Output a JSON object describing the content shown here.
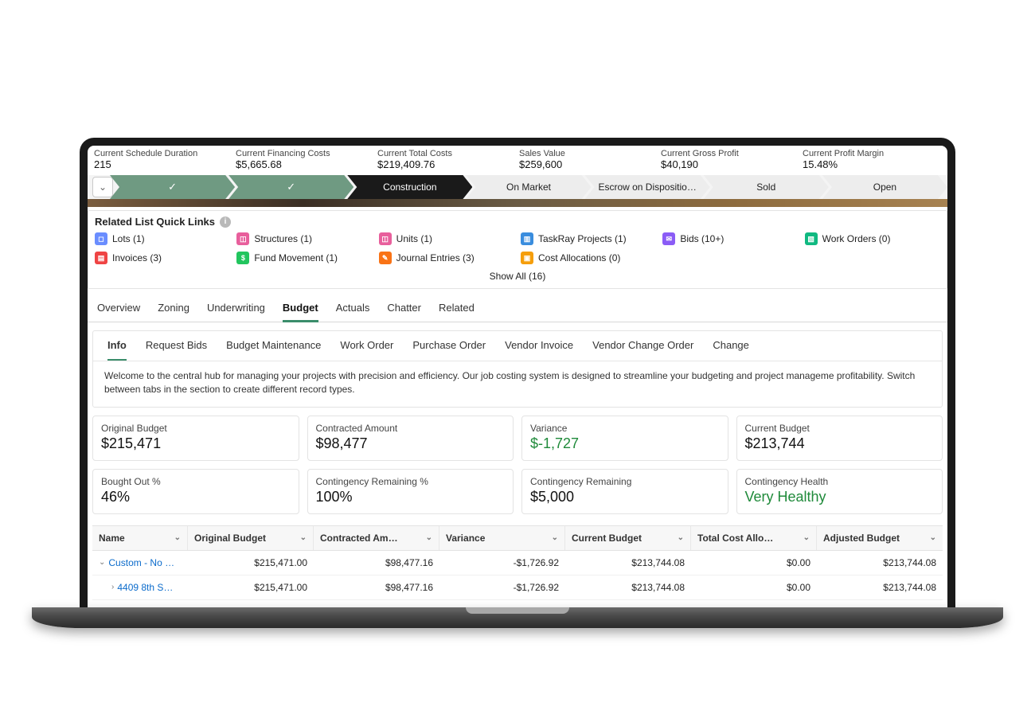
{
  "colors": {
    "stageDone": "#6f9a82",
    "stageActive": "#1a1a1a",
    "accentGreen": "#1f8a3a",
    "tabActiveUnderline": "#3b8d6b",
    "link": "#0b6bcb"
  },
  "metrics": [
    {
      "label": "Current Schedule Duration",
      "value": "215"
    },
    {
      "label": "Current Financing Costs",
      "value": "$5,665.68"
    },
    {
      "label": "Current Total Costs",
      "value": "$219,409.76"
    },
    {
      "label": "Sales Value",
      "value": "$259,600"
    },
    {
      "label": "Current Gross Profit",
      "value": "$40,190"
    },
    {
      "label": "Current Profit Margin",
      "value": "15.48%"
    }
  ],
  "stages": [
    {
      "label": "",
      "state": "done"
    },
    {
      "label": "",
      "state": "done"
    },
    {
      "label": "Construction",
      "state": "active"
    },
    {
      "label": "On Market",
      "state": "future"
    },
    {
      "label": "Escrow on Dispositio…",
      "state": "future"
    },
    {
      "label": "Sold",
      "state": "future"
    },
    {
      "label": "Open",
      "state": "future"
    }
  ],
  "related": {
    "title": "Related List Quick Links",
    "showAll": "Show All (16)",
    "items": [
      {
        "label": "Lots (1)",
        "iconColor": "#6a8dff",
        "iconGlyph": "◻"
      },
      {
        "label": "Structures (1)",
        "iconColor": "#e85f9c",
        "iconGlyph": "◫"
      },
      {
        "label": "Units (1)",
        "iconColor": "#e85f9c",
        "iconGlyph": "◫"
      },
      {
        "label": "TaskRay Projects (1)",
        "iconColor": "#3a8dde",
        "iconGlyph": "▥"
      },
      {
        "label": "Bids (10+)",
        "iconColor": "#8b5cf6",
        "iconGlyph": "✉"
      },
      {
        "label": "Work Orders (0)",
        "iconColor": "#10b981",
        "iconGlyph": "▧"
      },
      {
        "label": "Invoices (3)",
        "iconColor": "#ef4444",
        "iconGlyph": "▤"
      },
      {
        "label": "Fund Movement (1)",
        "iconColor": "#22c55e",
        "iconGlyph": "$"
      },
      {
        "label": "Journal Entries (3)",
        "iconColor": "#f97316",
        "iconGlyph": "✎"
      },
      {
        "label": "Cost Allocations (0)",
        "iconColor": "#f59e0b",
        "iconGlyph": "▣"
      }
    ]
  },
  "mainTabs": [
    "Overview",
    "Zoning",
    "Underwriting",
    "Budget",
    "Actuals",
    "Chatter",
    "Related"
  ],
  "mainTabActive": "Budget",
  "subTabs": [
    "Info",
    "Request Bids",
    "Budget Maintenance",
    "Work Order",
    "Purchase Order",
    "Vendor Invoice",
    "Vendor Change Order",
    "Change"
  ],
  "subTabActive": "Info",
  "infoText": "Welcome to the central hub for managing your projects with precision and efficiency. Our job costing system is designed to streamline your budgeting and project manageme profitability. Switch between tabs in the section to create different record types.",
  "cardsRow1": [
    {
      "label": "Original Budget",
      "value": "$215,471",
      "green": false
    },
    {
      "label": "Contracted Amount",
      "value": "$98,477",
      "green": false
    },
    {
      "label": "Variance",
      "value": "$-1,727",
      "green": true
    },
    {
      "label": "Current Budget",
      "value": "$213,744",
      "green": false
    }
  ],
  "cardsRow2": [
    {
      "label": "Bought Out %",
      "value": "46%",
      "green": false
    },
    {
      "label": "Contingency Remaining %",
      "value": "100%",
      "green": false
    },
    {
      "label": "Contingency Remaining",
      "value": "$5,000",
      "green": false
    },
    {
      "label": "Contingency Health",
      "value": "Very Healthy",
      "green": true
    }
  ],
  "table": {
    "headers": [
      "Name",
      "Original Budget",
      "Contracted Am…",
      "Variance",
      "Current Budget",
      "Total Cost Allo…",
      "Adjusted Budget"
    ],
    "rows": [
      {
        "name": "Custom - No …",
        "indent": 0,
        "chev": "⌄",
        "cols": [
          "$215,471.00",
          "$98,477.16",
          "-$1,726.92",
          "$213,744.08",
          "$0.00",
          "$213,744.08"
        ]
      },
      {
        "name": "4409 8th S…",
        "indent": 1,
        "chev": "›",
        "cols": [
          "$215,471.00",
          "$98,477.16",
          "-$1,726.92",
          "$213,744.08",
          "$0.00",
          "$213,744.08"
        ]
      }
    ]
  }
}
